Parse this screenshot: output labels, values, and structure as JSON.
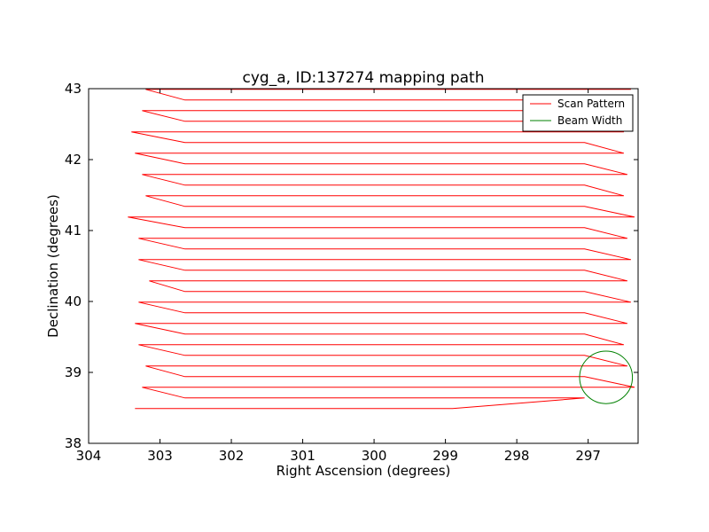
{
  "chart_data": {
    "type": "line",
    "title": "cyg_a, ID:137274 mapping path",
    "xlabel": "Right Ascension (degrees)",
    "ylabel": "Declination (degrees)",
    "xlim": [
      304,
      296.3
    ],
    "ylim": [
      38,
      43
    ],
    "x_inverted": true,
    "xticks": [
      304,
      303,
      302,
      301,
      300,
      299,
      298,
      297
    ],
    "yticks": [
      38,
      39,
      40,
      41,
      42,
      43
    ],
    "grid": false,
    "legend_position": "upper right",
    "scan_turn": {
      "east": 302.65,
      "west": 297.05
    },
    "scan_rows": [
      {
        "dec": 38.49,
        "ra_start": 303.35,
        "ra_end": 298.9
      },
      {
        "dec": 38.79,
        "ra_start": 303.25,
        "ra_end": 296.35
      },
      {
        "dec": 39.09,
        "ra_start": 303.2,
        "ra_end": 296.45
      },
      {
        "dec": 39.39,
        "ra_start": 303.3,
        "ra_end": 296.5
      },
      {
        "dec": 39.69,
        "ra_start": 303.35,
        "ra_end": 296.45
      },
      {
        "dec": 39.99,
        "ra_start": 303.3,
        "ra_end": 296.4
      },
      {
        "dec": 40.29,
        "ra_start": 303.15,
        "ra_end": 296.45
      },
      {
        "dec": 40.59,
        "ra_start": 303.3,
        "ra_end": 296.4
      },
      {
        "dec": 40.89,
        "ra_start": 303.3,
        "ra_end": 296.45
      },
      {
        "dec": 41.19,
        "ra_start": 303.45,
        "ra_end": 296.35
      },
      {
        "dec": 41.49,
        "ra_start": 303.2,
        "ra_end": 296.5
      },
      {
        "dec": 41.79,
        "ra_start": 303.25,
        "ra_end": 296.45
      },
      {
        "dec": 42.09,
        "ra_start": 303.35,
        "ra_end": 296.5
      },
      {
        "dec": 42.39,
        "ra_start": 303.4,
        "ra_end": 296.5
      },
      {
        "dec": 42.69,
        "ra_start": 303.25,
        "ra_end": 296.45
      },
      {
        "dec": 42.99,
        "ra_start": 303.2,
        "ra_end": 296.4
      }
    ],
    "series": [
      {
        "name": "Scan Pattern",
        "color": "#ff0000"
      },
      {
        "name": "Beam Width",
        "color": "#008000",
        "center_ra": 296.75,
        "center_dec": 38.93,
        "radius_deg": 0.37
      }
    ]
  }
}
